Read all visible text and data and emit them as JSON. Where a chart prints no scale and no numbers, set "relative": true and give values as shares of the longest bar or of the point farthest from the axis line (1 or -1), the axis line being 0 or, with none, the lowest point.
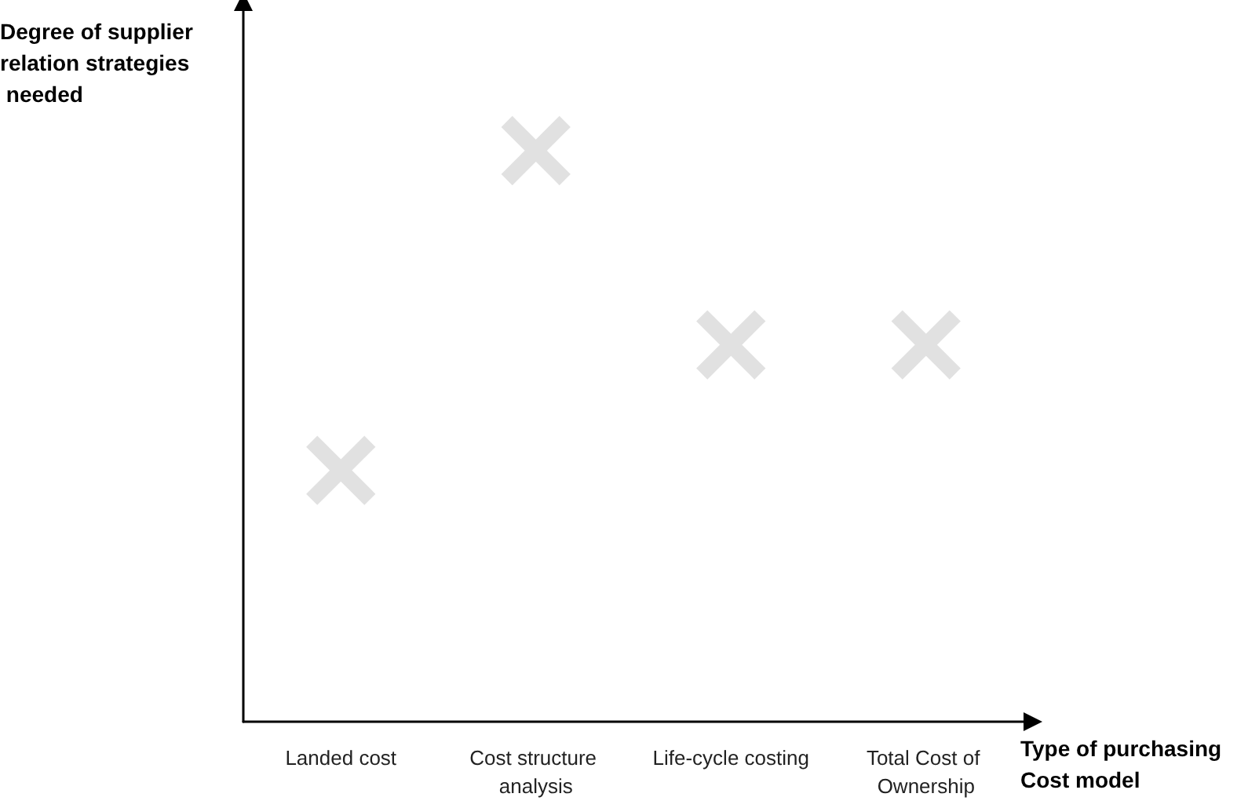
{
  "chart_data": {
    "type": "scatter",
    "xlabel": "Type of purchasing Cost model",
    "ylabel": "Degree of supplier relation strategies needed",
    "categories": [
      "Landed cost",
      "Cost structure analysis",
      "Life-cycle costing",
      "Total Cost of Ownership"
    ],
    "values": [
      0.44,
      1,
      0.66,
      0.66
    ],
    "color": "#d9d9d9",
    "relative": true,
    "marker": "cross",
    "grid": false
  }
}
